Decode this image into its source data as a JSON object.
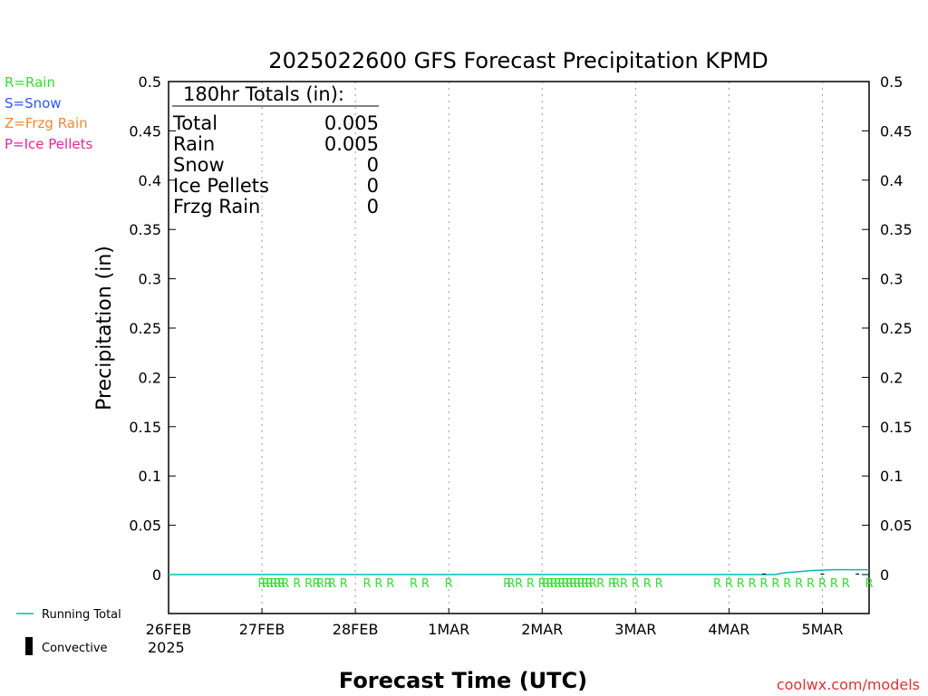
{
  "title": "2025022600 GFS Forecast Precipitation KPMD",
  "y_axis_label": "Precipitation (in)",
  "x_axis_label": "Forecast Time (UTC)",
  "credit": "coolwx.com/models",
  "legend_types": [
    {
      "label": "R=Rain",
      "color": "#33dd33"
    },
    {
      "label": "S=Snow",
      "color": "#3355ee"
    },
    {
      "label": "Z=Frzg Rain",
      "color": "#ee8833"
    },
    {
      "label": "P=Ice Pellets",
      "color": "#ee2299"
    }
  ],
  "legend_lines": {
    "running_total": "Running Total",
    "convective": "Convective"
  },
  "totals_box": {
    "heading": "180hr Totals (in):",
    "rows": [
      {
        "name": "Total",
        "value": "0.005"
      },
      {
        "name": "Rain",
        "value": "0.005"
      },
      {
        "name": "Snow",
        "value": "0"
      },
      {
        "name": "Ice Pellets",
        "value": "0"
      },
      {
        "name": "Frzg Rain",
        "value": "0"
      }
    ]
  },
  "chart_data": {
    "type": "line",
    "title": "2025022600 GFS Forecast Precipitation KPMD",
    "xlabel": "Forecast Time (UTC)",
    "ylabel": "Precipitation (in)",
    "ylim": [
      0,
      0.5
    ],
    "y_ticks": [
      "0",
      "0.05",
      "0.1",
      "0.15",
      "0.2",
      "0.25",
      "0.3",
      "0.35",
      "0.4",
      "0.45",
      "0.5"
    ],
    "x_tick_labels": [
      "26FEB",
      "27FEB",
      "28FEB",
      "1MAR",
      "2MAR",
      "3MAR",
      "4MAR",
      "5MAR"
    ],
    "x_start_sublabel": "2025",
    "grid": "vertical-dotted",
    "series": [
      {
        "name": "Running Total",
        "color": "#00bbbb",
        "points_hour_value": [
          [
            0,
            0
          ],
          [
            156,
            0
          ],
          [
            157,
            0.001
          ],
          [
            159,
            0.002
          ],
          [
            162,
            0.003
          ],
          [
            165,
            0.004
          ],
          [
            171,
            0.005
          ],
          [
            180,
            0.005
          ]
        ]
      }
    ],
    "convective": [
      [
        153,
        0.001
      ],
      [
        168,
        0.001
      ],
      [
        177,
        0.001
      ]
    ],
    "precip_type_markers": {
      "symbol": "R",
      "hours": [
        24,
        25,
        26,
        27,
        28,
        29,
        30,
        33,
        36,
        38,
        39,
        41,
        42,
        45,
        51,
        54,
        57,
        63,
        66,
        72,
        87,
        88,
        90,
        93,
        96,
        97,
        98,
        99,
        100,
        101,
        102,
        103,
        104,
        105,
        106,
        107,
        108,
        109,
        111,
        114,
        115,
        117,
        120,
        123,
        126,
        141,
        144,
        147,
        150,
        153,
        156,
        159,
        162,
        165,
        168,
        171,
        174,
        180
      ]
    }
  }
}
